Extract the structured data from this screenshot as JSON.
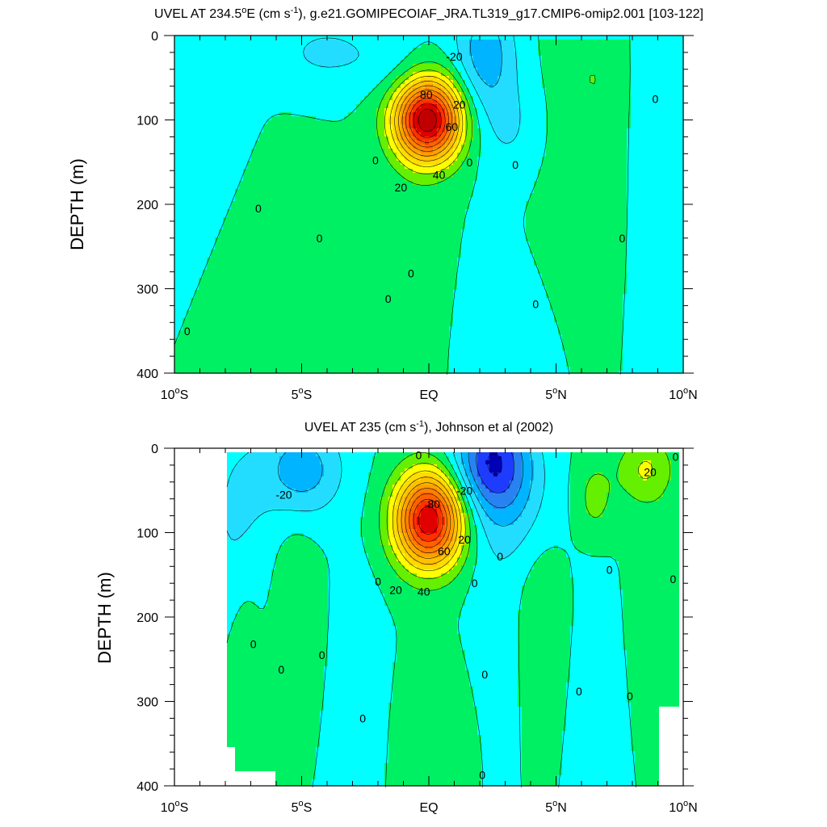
{
  "chart_data": [
    {
      "type": "contour",
      "title_prefix": "UVEL AT 234.5",
      "title_degree": "o",
      "title_mid": "E (cm s",
      "title_exp": "-1",
      "title_suffix": "), g.e21.GOMIPECOIAF_JRA.TL319_g17.CMIP6-omip2.001 [103-122]",
      "ylabel": "DEPTH (m)",
      "xlim": [
        -10,
        10
      ],
      "ylim": [
        0,
        400
      ],
      "y_reversed": true,
      "y_ticks": [
        0,
        100,
        200,
        300,
        400
      ],
      "x_ticks": [
        {
          "value": -10,
          "num": "10",
          "hemi": "S"
        },
        {
          "value": -5,
          "num": "5",
          "hemi": "S"
        },
        {
          "value": 0,
          "num": "EQ",
          "hemi": ""
        },
        {
          "value": 5,
          "num": "5",
          "hemi": "N"
        },
        {
          "value": 10,
          "num": "10",
          "hemi": "N"
        }
      ],
      "contour_interval": 10,
      "contour_labels": [
        {
          "text": "-20",
          "x": 1.0,
          "y": 25
        },
        {
          "text": "80",
          "x": -0.1,
          "y": 70
        },
        {
          "text": "20",
          "x": 1.2,
          "y": 82
        },
        {
          "text": "60",
          "x": 0.9,
          "y": 108
        },
        {
          "text": "40",
          "x": 0.4,
          "y": 165
        },
        {
          "text": "20",
          "x": -1.1,
          "y": 180
        },
        {
          "text": "0",
          "x": -2.1,
          "y": 148
        },
        {
          "text": "0",
          "x": 1.6,
          "y": 150
        },
        {
          "text": "0",
          "x": 3.4,
          "y": 153
        },
        {
          "text": "0",
          "x": 8.9,
          "y": 75
        },
        {
          "text": "0",
          "x": -6.7,
          "y": 205
        },
        {
          "text": "0",
          "x": -4.3,
          "y": 240
        },
        {
          "text": "0",
          "x": 7.6,
          "y": 240
        },
        {
          "text": "0",
          "x": -0.7,
          "y": 282
        },
        {
          "text": "0",
          "x": -1.6,
          "y": 312
        },
        {
          "text": "0",
          "x": 4.2,
          "y": 318
        },
        {
          "text": "0",
          "x": -9.5,
          "y": 350
        }
      ]
    },
    {
      "type": "contour",
      "title_prefix": "UVEL AT 235 (cm s",
      "title_exp": "-1",
      "title_suffix": "), Johnson et al (2002)",
      "ylabel": "DEPTH (m)",
      "xlim": [
        -10,
        10
      ],
      "ylim": [
        0,
        400
      ],
      "y_reversed": true,
      "y_ticks": [
        0,
        100,
        200,
        300,
        400
      ],
      "x_ticks": [
        {
          "value": -10,
          "num": "10",
          "hemi": "S"
        },
        {
          "value": -5,
          "num": "5",
          "hemi": "S"
        },
        {
          "value": 0,
          "num": "EQ",
          "hemi": ""
        },
        {
          "value": 5,
          "num": "5",
          "hemi": "N"
        },
        {
          "value": 10,
          "num": "10",
          "hemi": "N"
        }
      ],
      "data_x_range": [
        -8,
        9.8
      ],
      "contour_interval": 10,
      "contour_labels": [
        {
          "text": "0",
          "x": -0.4,
          "y": 8
        },
        {
          "text": "-20",
          "x": -5.7,
          "y": 55
        },
        {
          "text": "-20",
          "x": 1.4,
          "y": 50
        },
        {
          "text": "80",
          "x": 0.2,
          "y": 66
        },
        {
          "text": "20",
          "x": 1.4,
          "y": 108
        },
        {
          "text": "60",
          "x": 0.6,
          "y": 122
        },
        {
          "text": "40",
          "x": -0.2,
          "y": 170
        },
        {
          "text": "20",
          "x": -1.3,
          "y": 168
        },
        {
          "text": "0",
          "x": 2.8,
          "y": 128
        },
        {
          "text": "0",
          "x": 7.1,
          "y": 144
        },
        {
          "text": "0",
          "x": 9.6,
          "y": 155
        },
        {
          "text": "0",
          "x": -2.0,
          "y": 158
        },
        {
          "text": "0",
          "x": 1.8,
          "y": 160
        },
        {
          "text": "20",
          "x": 8.7,
          "y": 28
        },
        {
          "text": "0",
          "x": 9.7,
          "y": 10
        },
        {
          "text": "0",
          "x": -6.9,
          "y": 232
        },
        {
          "text": "0",
          "x": -5.8,
          "y": 262
        },
        {
          "text": "0",
          "x": -4.2,
          "y": 245
        },
        {
          "text": "0",
          "x": 2.2,
          "y": 268
        },
        {
          "text": "0",
          "x": 5.9,
          "y": 288
        },
        {
          "text": "0",
          "x": 7.9,
          "y": 294
        },
        {
          "text": "0",
          "x": -2.6,
          "y": 320
        },
        {
          "text": "0",
          "x": 2.1,
          "y": 387
        }
      ]
    }
  ],
  "colors": {
    "levels": [
      {
        "min": -60,
        "color": "#0000b4"
      },
      {
        "min": -50,
        "color": "#1e3cff"
      },
      {
        "min": -40,
        "color": "#2882f0"
      },
      {
        "min": -30,
        "color": "#00b4ff"
      },
      {
        "min": -20,
        "color": "#22ddff"
      },
      {
        "min": -10,
        "color": "#00ffff"
      },
      {
        "min": 0,
        "color": "#00f064"
      },
      {
        "min": 10,
        "color": "#64f000"
      },
      {
        "min": 20,
        "color": "#ffff00"
      },
      {
        "min": 30,
        "color": "#ffdc00"
      },
      {
        "min": 40,
        "color": "#ffc000"
      },
      {
        "min": 50,
        "color": "#ffa000"
      },
      {
        "min": 60,
        "color": "#ff8000"
      },
      {
        "min": 70,
        "color": "#ff6000"
      },
      {
        "min": 80,
        "color": "#ff3000"
      },
      {
        "min": 90,
        "color": "#e00000"
      },
      {
        "min": 100,
        "color": "#c00000"
      }
    ],
    "missing": "#ffffff",
    "contour_line": "#000000"
  }
}
